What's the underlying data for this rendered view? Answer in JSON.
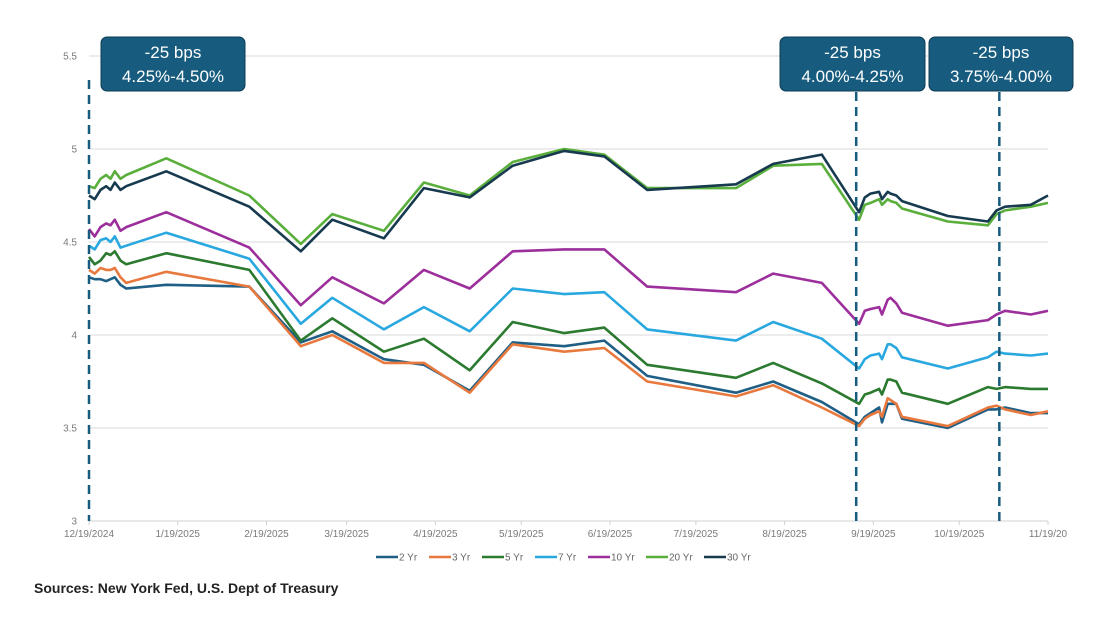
{
  "chart_data": {
    "type": "line",
    "title": "",
    "xlabel": "",
    "ylabel": "",
    "ylim": [
      3,
      5.5
    ],
    "yticks": [
      3,
      3.5,
      4,
      4.5,
      5,
      5.5
    ],
    "ytick_labels": [
      "3",
      "3.5",
      "4",
      "4.5",
      "5",
      "5.5"
    ],
    "xlim_days": [
      0,
      335
    ],
    "x_tick_labels": [
      "12/19/2024",
      "1/19/2025",
      "2/19/2025",
      "3/19/2025",
      "4/19/2025",
      "5/19/2025",
      "6/19/2025",
      "7/19/2025",
      "8/19/2025",
      "9/19/2025",
      "10/19/2025",
      "11/19/20"
    ],
    "x_tick_days": [
      0,
      31,
      62,
      90,
      121,
      151,
      182,
      212,
      243,
      274,
      304,
      335
    ],
    "grid": "horizontal",
    "legend_position": "bottom",
    "x_days": [
      0,
      2,
      4,
      6,
      7.5,
      9,
      11,
      13,
      27,
      56,
      74,
      85,
      103,
      117,
      133,
      148,
      166,
      180,
      195,
      226,
      239,
      256,
      269,
      271,
      273,
      276,
      277,
      279,
      280,
      282,
      284,
      300,
      314,
      317,
      320,
      329,
      335
    ],
    "series": [
      {
        "name": "2 Yr",
        "color": "#1f5f86",
        "values": [
          4.31,
          4.3,
          4.3,
          4.29,
          4.3,
          4.31,
          4.27,
          4.25,
          4.27,
          4.26,
          3.96,
          4.02,
          3.87,
          3.84,
          3.7,
          3.96,
          3.94,
          3.97,
          3.78,
          3.69,
          3.75,
          3.64,
          3.52,
          3.56,
          3.58,
          3.61,
          3.53,
          3.63,
          3.63,
          3.63,
          3.55,
          3.5,
          3.6,
          3.6,
          3.61,
          3.58,
          3.58
        ]
      },
      {
        "name": "3 Yr",
        "color": "#e8793e",
        "values": [
          4.35,
          4.33,
          4.36,
          4.35,
          4.35,
          4.36,
          4.31,
          4.28,
          4.34,
          4.26,
          3.94,
          4.0,
          3.85,
          3.85,
          3.69,
          3.95,
          3.91,
          3.93,
          3.75,
          3.67,
          3.73,
          3.61,
          3.51,
          3.55,
          3.57,
          3.59,
          3.56,
          3.66,
          3.65,
          3.63,
          3.56,
          3.51,
          3.61,
          3.62,
          3.6,
          3.57,
          3.59
        ]
      },
      {
        "name": "5 Yr",
        "color": "#2b7a2f",
        "values": [
          4.42,
          4.38,
          4.4,
          4.44,
          4.43,
          4.45,
          4.4,
          4.38,
          4.44,
          4.35,
          3.97,
          4.09,
          3.91,
          3.98,
          3.81,
          4.07,
          4.01,
          4.04,
          3.84,
          3.77,
          3.85,
          3.74,
          3.63,
          3.68,
          3.69,
          3.71,
          3.68,
          3.76,
          3.76,
          3.75,
          3.69,
          3.63,
          3.72,
          3.71,
          3.72,
          3.71,
          3.71
        ]
      },
      {
        "name": "7 Yr",
        "color": "#29a8e0",
        "values": [
          4.48,
          4.46,
          4.51,
          4.52,
          4.5,
          4.53,
          4.47,
          4.48,
          4.55,
          4.41,
          4.06,
          4.2,
          4.03,
          4.15,
          4.02,
          4.25,
          4.22,
          4.23,
          4.03,
          3.97,
          4.07,
          3.98,
          3.82,
          3.87,
          3.89,
          3.9,
          3.87,
          3.95,
          3.95,
          3.93,
          3.88,
          3.82,
          3.88,
          3.91,
          3.9,
          3.89,
          3.9
        ]
      },
      {
        "name": "10 Yr",
        "color": "#9c2f9b",
        "values": [
          4.57,
          4.53,
          4.58,
          4.6,
          4.59,
          4.62,
          4.56,
          4.58,
          4.66,
          4.47,
          4.16,
          4.31,
          4.17,
          4.35,
          4.25,
          4.45,
          4.46,
          4.46,
          4.26,
          4.23,
          4.33,
          4.28,
          4.06,
          4.13,
          4.14,
          4.15,
          4.11,
          4.19,
          4.2,
          4.17,
          4.12,
          4.05,
          4.08,
          4.11,
          4.13,
          4.11,
          4.13
        ]
      },
      {
        "name": "20 Yr",
        "color": "#5aaf3c",
        "values": [
          4.8,
          4.79,
          4.84,
          4.86,
          4.84,
          4.88,
          4.84,
          4.86,
          4.95,
          4.75,
          4.49,
          4.65,
          4.56,
          4.82,
          4.75,
          4.93,
          5.0,
          4.97,
          4.79,
          4.79,
          4.91,
          4.92,
          4.62,
          4.7,
          4.71,
          4.73,
          4.7,
          4.73,
          4.72,
          4.71,
          4.68,
          4.61,
          4.59,
          4.65,
          4.67,
          4.69,
          4.71
        ]
      },
      {
        "name": "30 Yr",
        "color": "#173a4f",
        "values": [
          4.75,
          4.73,
          4.78,
          4.8,
          4.78,
          4.82,
          4.78,
          4.8,
          4.88,
          4.69,
          4.45,
          4.62,
          4.52,
          4.79,
          4.74,
          4.91,
          4.99,
          4.96,
          4.78,
          4.81,
          4.92,
          4.97,
          4.66,
          4.74,
          4.76,
          4.77,
          4.73,
          4.77,
          4.76,
          4.75,
          4.72,
          4.64,
          4.61,
          4.67,
          4.69,
          4.7,
          4.75
        ]
      }
    ],
    "annotations": [
      {
        "label_line1": "-25 bps",
        "label_line2": "4.25%-4.50%",
        "x_day": 0
      },
      {
        "label_line1": "-25 bps",
        "label_line2": "4.00%-4.25%",
        "x_day": 268
      },
      {
        "label_line1": "-25 bps",
        "label_line2": "3.75%-4.00%",
        "x_day": 318
      }
    ],
    "annotation_color": "#175c7e"
  },
  "footer": {
    "source": "Sources: New York Fed, U.S. Dept of Treasury"
  }
}
